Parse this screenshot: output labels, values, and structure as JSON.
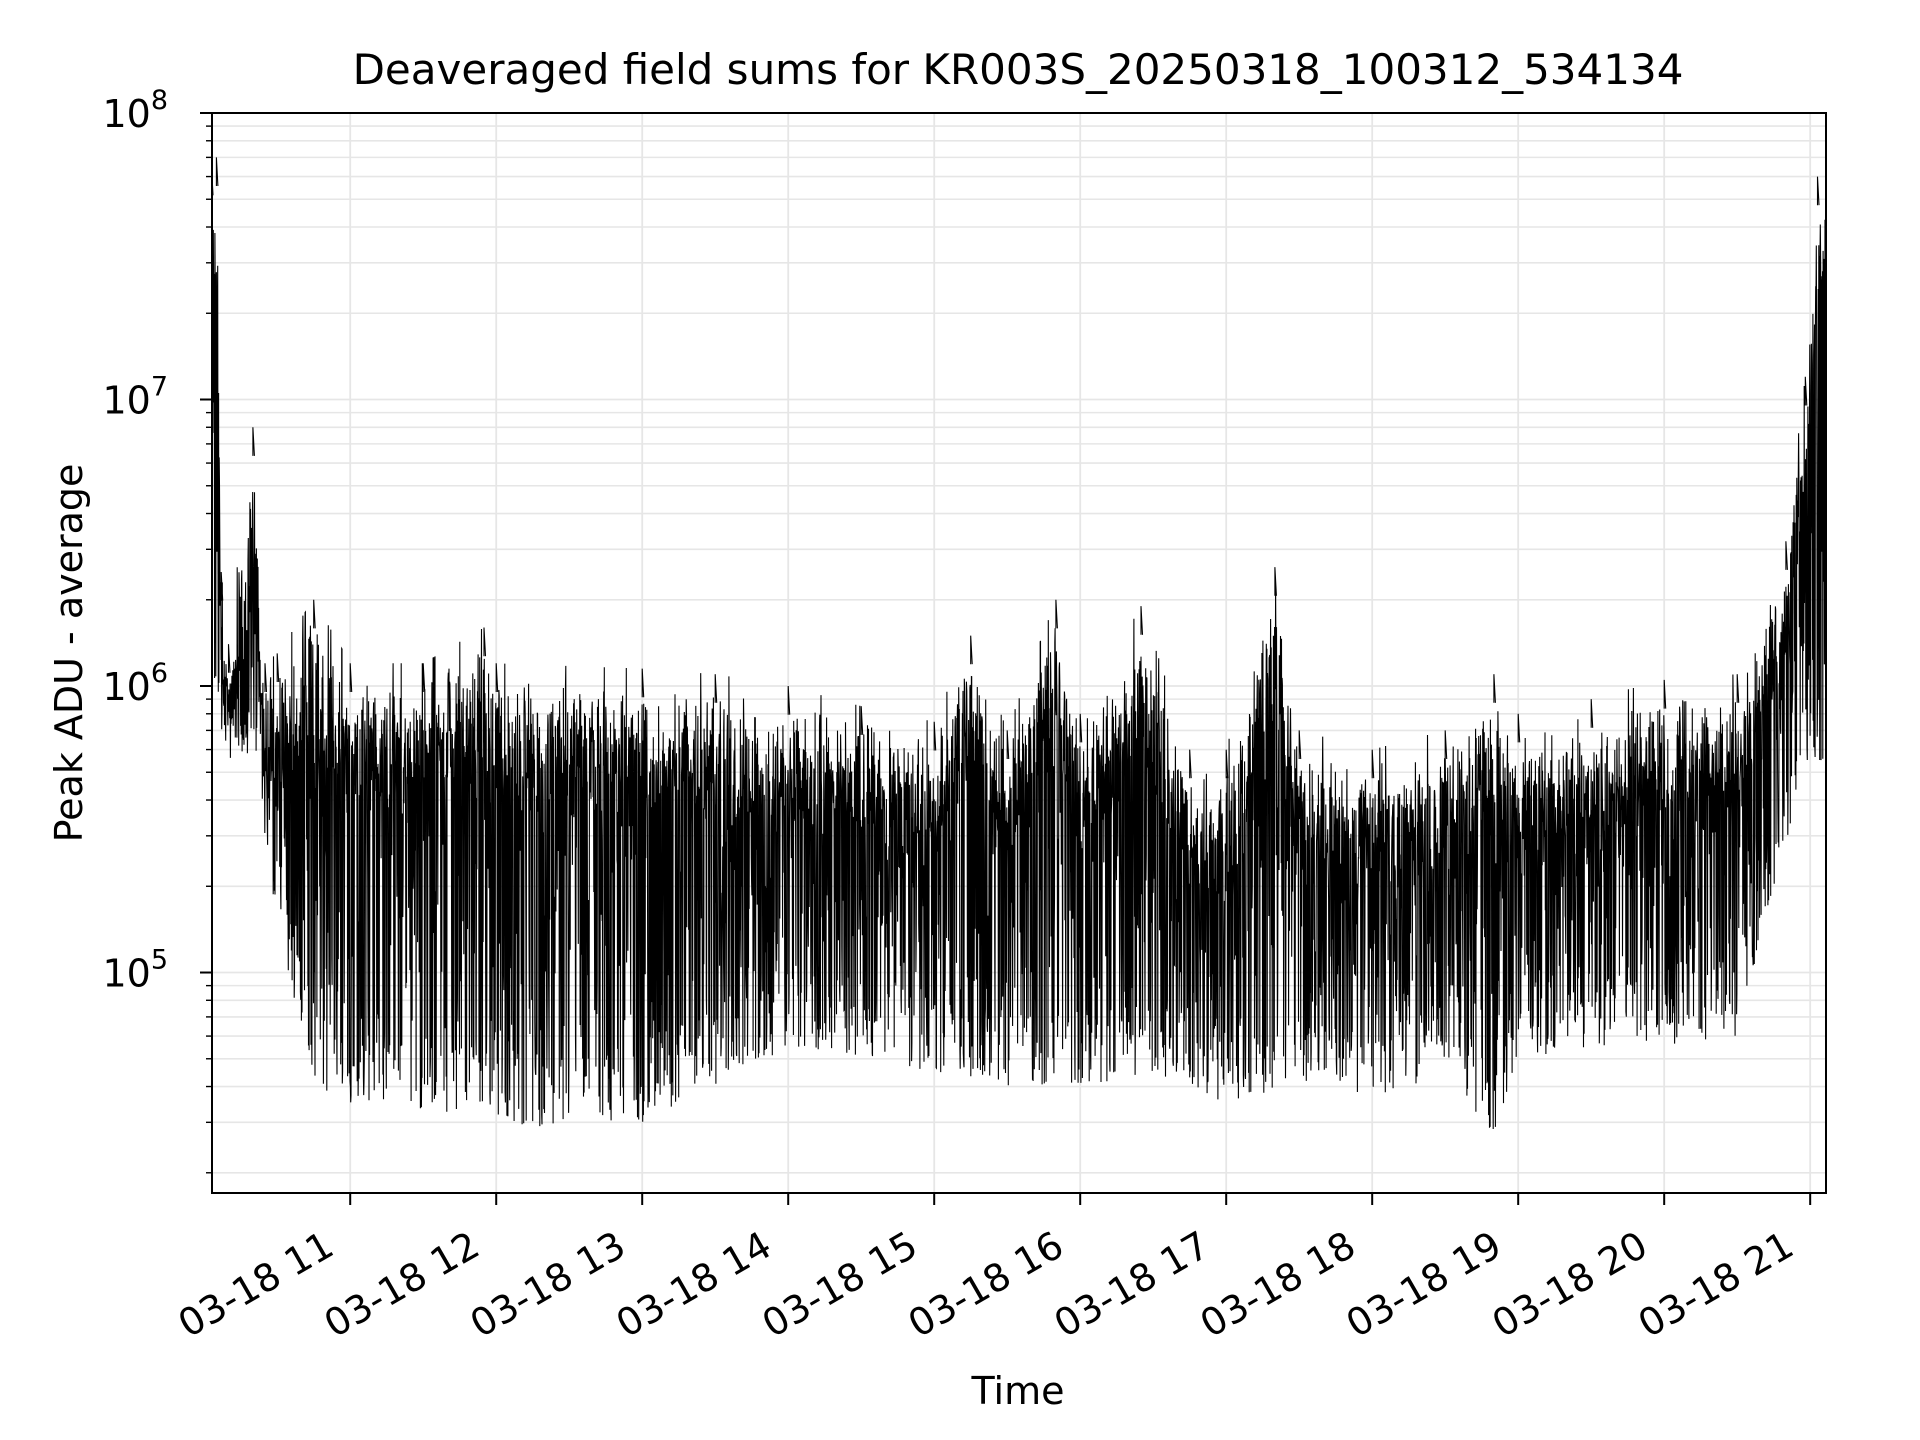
{
  "chart_data": {
    "type": "line",
    "title": "Deaveraged field sums for KR003S_20250318_100312_534134",
    "xlabel": "Time",
    "ylabel": "Peak ADU - average",
    "yscale": "log",
    "ylim": [
      17000,
      100000000
    ],
    "xlim": [
      "2025-03-18T10:03:12",
      "2025-03-18T21:06:30"
    ],
    "x_ticks": [
      {
        "t": "2025-03-18T11:00",
        "label": "03-18 11"
      },
      {
        "t": "2025-03-18T12:00",
        "label": "03-18 12"
      },
      {
        "t": "2025-03-18T13:00",
        "label": "03-18 13"
      },
      {
        "t": "2025-03-18T14:00",
        "label": "03-18 14"
      },
      {
        "t": "2025-03-18T15:00",
        "label": "03-18 15"
      },
      {
        "t": "2025-03-18T16:00",
        "label": "03-18 16"
      },
      {
        "t": "2025-03-18T17:00",
        "label": "03-18 17"
      },
      {
        "t": "2025-03-18T18:00",
        "label": "03-18 18"
      },
      {
        "t": "2025-03-18T19:00",
        "label": "03-18 19"
      },
      {
        "t": "2025-03-18T20:00",
        "label": "03-18 20"
      },
      {
        "t": "2025-03-18T21:00",
        "label": "03-18 21"
      }
    ],
    "y_ticks": [
      {
        "v": 100000,
        "base": "10",
        "exp": "5"
      },
      {
        "v": 1000000,
        "base": "10",
        "exp": "6"
      },
      {
        "v": 10000000,
        "base": "10",
        "exp": "7"
      },
      {
        "v": 100000000,
        "base": "10",
        "exp": "8"
      }
    ],
    "grid": true,
    "line_color": "#000000",
    "series": [
      {
        "envelope_upper": [
          {
            "t": "10:03",
            "y": 65000000
          },
          {
            "t": "10:05",
            "y": 70000000
          },
          {
            "t": "10:07",
            "y": 2500000
          },
          {
            "t": "10:10",
            "y": 1400000
          },
          {
            "t": "10:20",
            "y": 8000000
          },
          {
            "t": "10:25",
            "y": 1200000
          },
          {
            "t": "10:30",
            "y": 1300000
          },
          {
            "t": "10:45",
            "y": 2000000
          },
          {
            "t": "11:00",
            "y": 1200000
          },
          {
            "t": "11:30",
            "y": 1200000
          },
          {
            "t": "11:55",
            "y": 1600000
          },
          {
            "t": "12:00",
            "y": 1200000
          },
          {
            "t": "13:00",
            "y": 1150000
          },
          {
            "t": "13:30",
            "y": 1100000
          },
          {
            "t": "14:00",
            "y": 1000000
          },
          {
            "t": "14:30",
            "y": 850000
          },
          {
            "t": "15:00",
            "y": 750000
          },
          {
            "t": "15:15",
            "y": 1500000
          },
          {
            "t": "15:30",
            "y": 700000
          },
          {
            "t": "15:50",
            "y": 2000000
          },
          {
            "t": "16:00",
            "y": 800000
          },
          {
            "t": "16:25",
            "y": 1900000
          },
          {
            "t": "16:45",
            "y": 600000
          },
          {
            "t": "17:00",
            "y": 600000
          },
          {
            "t": "17:20",
            "y": 2600000
          },
          {
            "t": "17:30",
            "y": 700000
          },
          {
            "t": "18:00",
            "y": 600000
          },
          {
            "t": "18:30",
            "y": 700000
          },
          {
            "t": "18:50",
            "y": 1100000
          },
          {
            "t": "19:00",
            "y": 800000
          },
          {
            "t": "19:30",
            "y": 900000
          },
          {
            "t": "20:00",
            "y": 1050000
          },
          {
            "t": "20:30",
            "y": 1100000
          },
          {
            "t": "20:50",
            "y": 3200000
          },
          {
            "t": "20:58",
            "y": 12000000
          },
          {
            "t": "21:03",
            "y": 60000000
          }
        ],
        "envelope_lower": [
          {
            "t": "10:10",
            "y": 700000
          },
          {
            "t": "10:20",
            "y": 500000
          },
          {
            "t": "10:30",
            "y": 150000
          },
          {
            "t": "10:45",
            "y": 40000
          },
          {
            "t": "11:00",
            "y": 35000
          },
          {
            "t": "11:30",
            "y": 30000
          },
          {
            "t": "12:00",
            "y": 30000
          },
          {
            "t": "12:30",
            "y": 28000
          },
          {
            "t": "13:00",
            "y": 30000
          },
          {
            "t": "13:30",
            "y": 40000
          },
          {
            "t": "14:00",
            "y": 55000
          },
          {
            "t": "14:30",
            "y": 50000
          },
          {
            "t": "15:00",
            "y": 45000
          },
          {
            "t": "15:30",
            "y": 40000
          },
          {
            "t": "16:00",
            "y": 40000
          },
          {
            "t": "16:30",
            "y": 45000
          },
          {
            "t": "17:00",
            "y": 35000
          },
          {
            "t": "17:30",
            "y": 40000
          },
          {
            "t": "18:00",
            "y": 35000
          },
          {
            "t": "18:30",
            "y": 45000
          },
          {
            "t": "18:50",
            "y": 27000
          },
          {
            "t": "19:00",
            "y": 50000
          },
          {
            "t": "19:30",
            "y": 55000
          },
          {
            "t": "20:00",
            "y": 55000
          },
          {
            "t": "20:30",
            "y": 60000
          },
          {
            "t": "20:45",
            "y": 200000
          },
          {
            "t": "21:00",
            "y": 550000
          }
        ]
      }
    ]
  }
}
